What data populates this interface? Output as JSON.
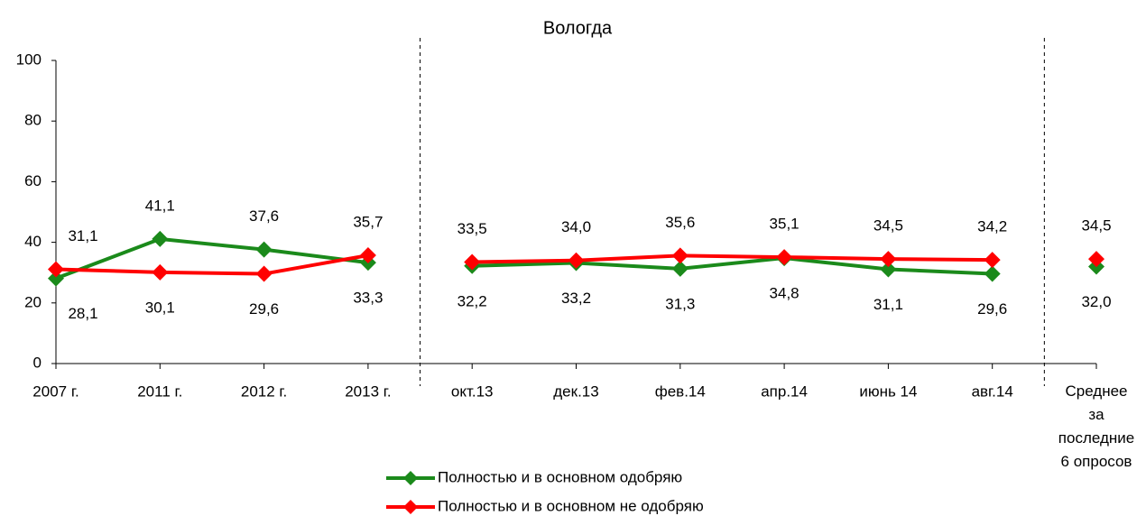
{
  "chart_data": {
    "type": "line",
    "title": "Вологда",
    "categories": [
      "2007 г.",
      "2011 г.",
      "2012 г.",
      "2013 г.",
      "окт.13",
      "дек.13",
      "фев.14",
      "апр.14",
      "июнь 14",
      "авг.14",
      "Среднее\nза\nпоследние\n6 опросов"
    ],
    "series": [
      {
        "name": "Полностью и в основном одобряю",
        "color": "#1b8a1b",
        "values": [
          28.1,
          41.1,
          37.6,
          33.3,
          32.2,
          33.2,
          31.3,
          34.8,
          31.1,
          29.6,
          32.0
        ],
        "value_labels": [
          "28,1",
          "41,1",
          "37,6",
          "33,3",
          "32,2",
          "33,2",
          "31,3",
          "34,8",
          "31,1",
          "29,6",
          "32,0"
        ]
      },
      {
        "name": "Полностью и в основном не одобряю",
        "color": "#ff0000",
        "values": [
          31.1,
          30.1,
          29.6,
          35.7,
          33.5,
          34.0,
          35.6,
          35.1,
          34.5,
          34.2,
          34.5
        ],
        "value_labels": [
          "31,1",
          "30,1",
          "29,6",
          "35,7",
          "33,5",
          "34,0",
          "35,6",
          "35,1",
          "34,5",
          "34,2",
          "34,5"
        ]
      }
    ],
    "breaks": [
      4,
      10
    ],
    "ylim": [
      0,
      100
    ],
    "yticks": [
      0,
      20,
      40,
      60,
      80,
      100
    ],
    "legend": "bottom"
  }
}
